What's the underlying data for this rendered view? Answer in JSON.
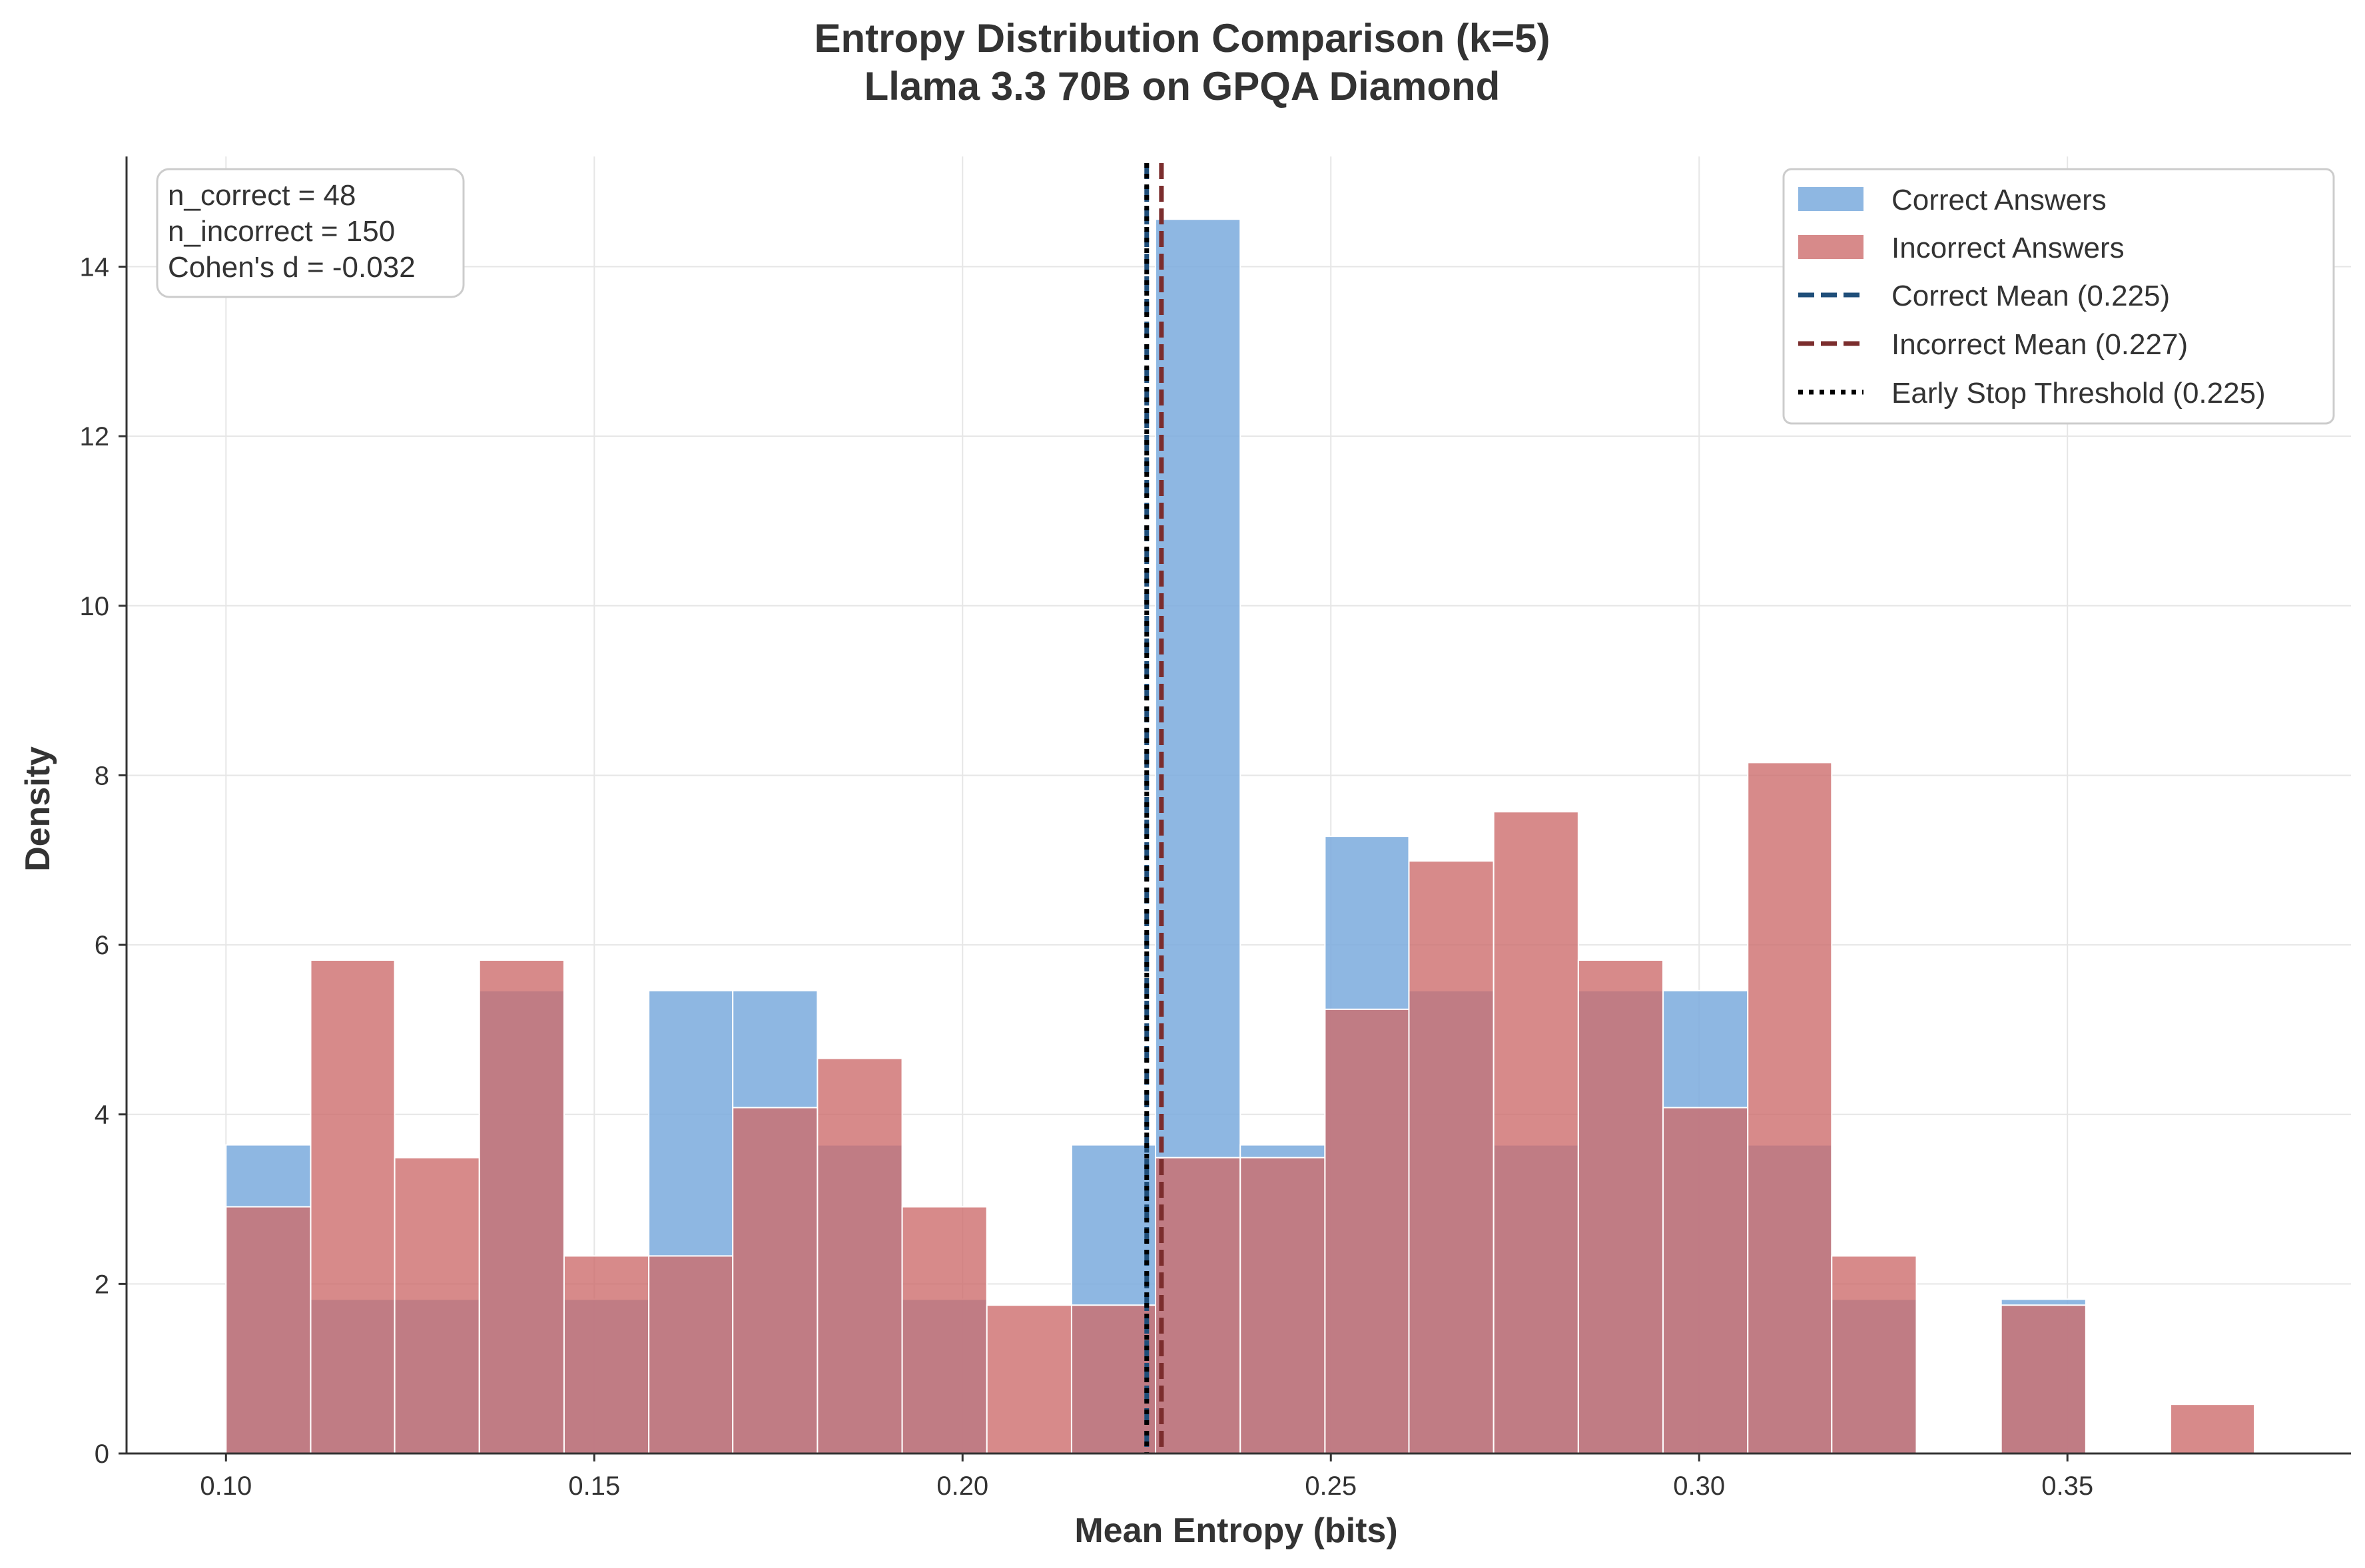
{
  "chart_data": {
    "type": "bar",
    "title": "Entropy Distribution Comparison (k=5)",
    "subtitle": "Llama 3.3 70B on GPQA Diamond",
    "xlabel": "Mean Entropy (bits)",
    "ylabel": "Density",
    "xlim": [
      0.0865,
      0.3885
    ],
    "ylim": [
      0,
      15.3
    ],
    "xticks": [
      0.1,
      0.15,
      0.2,
      0.25,
      0.3,
      0.35
    ],
    "xtick_labels": [
      "0.10",
      "0.15",
      "0.20",
      "0.25",
      "0.30",
      "0.35"
    ],
    "yticks": [
      0,
      2,
      4,
      6,
      8,
      10,
      12,
      14
    ],
    "ytick_labels": [
      "0",
      "2",
      "4",
      "6",
      "8",
      "10",
      "12",
      "14"
    ],
    "grid": true,
    "legend_position": "top-right",
    "colors": {
      "correct_fill": "#7aaadd",
      "incorrect_fill": "#cd6d6d",
      "correct_mean": "#1f4e79",
      "incorrect_mean": "#7b2d2d",
      "threshold": "#000000"
    },
    "bin_edges": [
      0.1,
      0.1115,
      0.1229,
      0.1344,
      0.1459,
      0.1574,
      0.1688,
      0.1803,
      0.1918,
      0.2033,
      0.2148,
      0.2262,
      0.2377,
      0.2492,
      0.2606,
      0.2721,
      0.2836,
      0.2951,
      0.3066,
      0.318,
      0.3295,
      0.341,
      0.3525,
      0.364,
      0.3754
    ],
    "series": [
      {
        "name": "Correct Answers",
        "values": [
          3.64,
          1.82,
          1.82,
          5.46,
          1.82,
          5.46,
          5.46,
          3.64,
          1.82,
          0,
          3.64,
          14.56,
          3.64,
          7.28,
          5.46,
          3.64,
          5.46,
          5.46,
          3.64,
          1.82,
          0,
          1.82,
          0,
          0
        ]
      },
      {
        "name": "Incorrect Answers",
        "values": [
          2.91,
          5.82,
          3.49,
          5.82,
          2.33,
          2.33,
          4.08,
          4.66,
          2.91,
          1.75,
          1.75,
          3.49,
          3.49,
          5.24,
          6.99,
          7.57,
          5.82,
          4.08,
          8.15,
          2.33,
          0,
          1.75,
          0,
          0.58
        ]
      }
    ],
    "reference_lines": [
      {
        "name": "Correct Mean (0.225)",
        "x": 0.225,
        "style": "dashed"
      },
      {
        "name": "Incorrect Mean (0.227)",
        "x": 0.227,
        "style": "dashed"
      },
      {
        "name": "Early Stop Threshold (0.225)",
        "x": 0.225,
        "style": "dotted"
      }
    ],
    "annotation": {
      "lines": [
        "n_correct = 48",
        "n_incorrect = 150",
        "Cohen's d = -0.032"
      ]
    }
  }
}
